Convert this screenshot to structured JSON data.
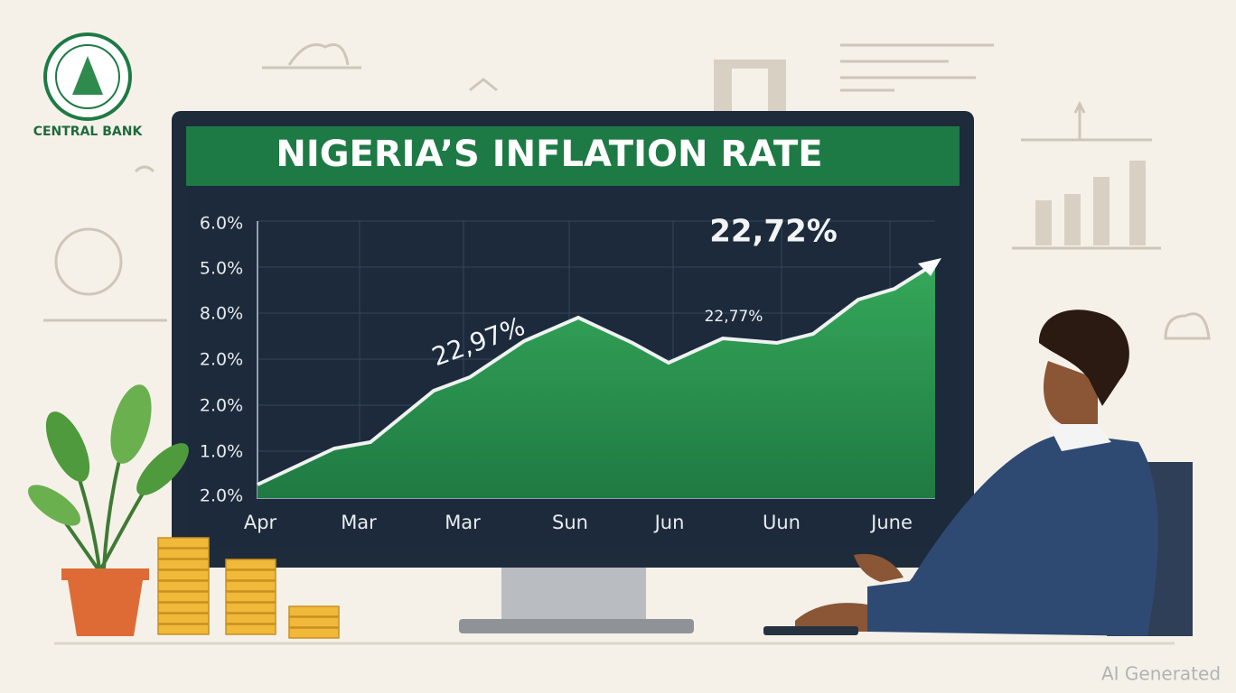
{
  "logo": {
    "label": "CENTRAL BANK"
  },
  "screen": {
    "title": "NIGERIA’S INFLATION RATE",
    "y_labels": [
      "6.0%",
      "5.0%",
      "8.0%",
      "2.0%",
      "2.0%",
      "1.0%",
      "2.0%"
    ],
    "x_labels": [
      "Apr",
      "Mar",
      "Mar",
      "Sun",
      "Jun",
      "Uun",
      "June"
    ],
    "annotations": [
      "22,72%",
      "22,97%",
      "22,77%"
    ]
  },
  "watermark": "AI Generated"
}
